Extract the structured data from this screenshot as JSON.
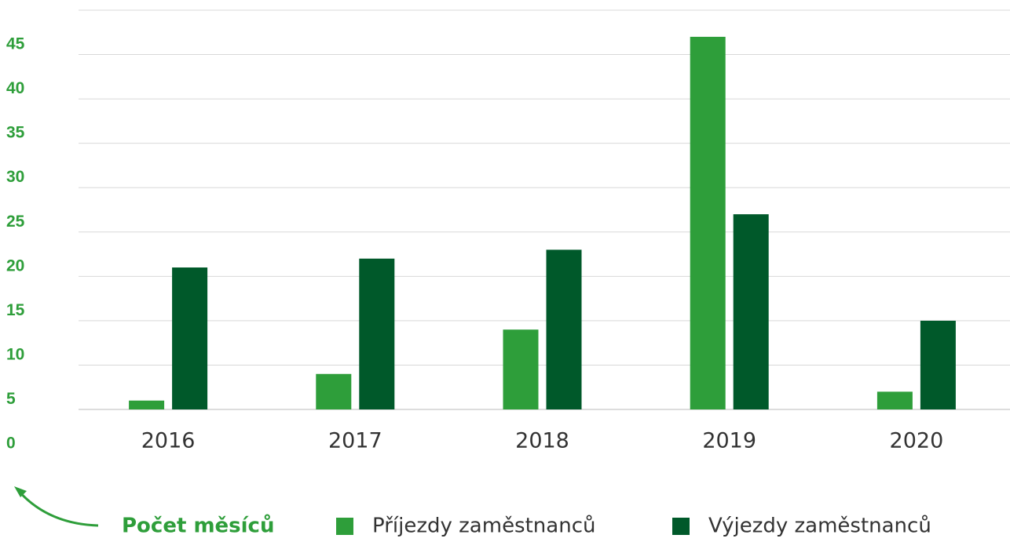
{
  "chart_data": {
    "type": "bar",
    "y_label": "Počet měsíců",
    "categories": [
      "2016",
      "2017",
      "2018",
      "2019",
      "2020"
    ],
    "series": [
      {
        "name": "Příjezdy zaměstnanců",
        "color": "#2e9e3a",
        "values": [
          1,
          4,
          9,
          42,
          2
        ]
      },
      {
        "name": "Výjezdy zaměstnanců",
        "color": "#00592a",
        "values": [
          16,
          17,
          18,
          22,
          10
        ]
      }
    ],
    "ylim": [
      0,
      45
    ],
    "yticks": [
      0,
      5,
      10,
      15,
      20,
      25,
      30,
      35,
      40,
      45
    ],
    "grid": true
  }
}
